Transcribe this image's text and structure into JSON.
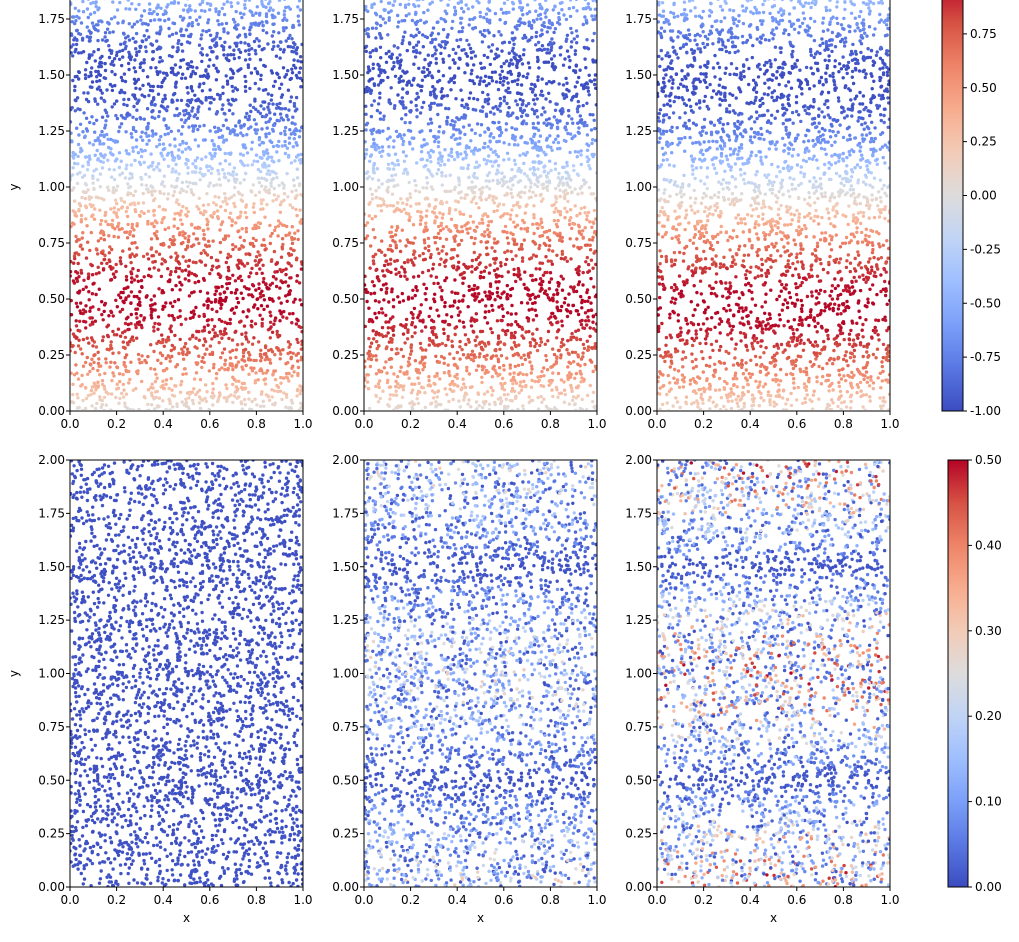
{
  "colors": {
    "coolwarm": [
      "#3b4cc0",
      "#5977e3",
      "#7b9ff9",
      "#9ebeff",
      "#c0d4f5",
      "#dddcdc",
      "#f2cbb7",
      "#f7ac8e",
      "#ee8468",
      "#d65244",
      "#b40426"
    ]
  },
  "chart_data": [
    {
      "type": "scatter",
      "panel": "top-left",
      "row": 0,
      "col": 0,
      "field": "sin",
      "phase": 0.0,
      "xlabel": "",
      "ylabel": "y",
      "xlim": [
        0,
        1
      ],
      "ylim": [
        0,
        2
      ],
      "xticks": [
        "0.0",
        "0.2",
        "0.4",
        "0.6",
        "0.8",
        "1.0"
      ],
      "yticks": [
        "0.00",
        "0.25",
        "0.50",
        "0.75",
        "1.00",
        "1.25",
        "1.50",
        "1.75"
      ]
    },
    {
      "type": "scatter",
      "panel": "top-middle",
      "row": 0,
      "col": 1,
      "field": "sin",
      "phase": 0.0,
      "xlabel": "",
      "ylabel": "",
      "xlim": [
        0,
        1
      ],
      "ylim": [
        0,
        2
      ],
      "xticks": [
        "0.0",
        "0.2",
        "0.4",
        "0.6",
        "0.8",
        "1.0"
      ],
      "yticks": [
        "0.00",
        "0.25",
        "0.50",
        "0.75",
        "1.00",
        "1.25",
        "1.50",
        "1.75"
      ]
    },
    {
      "type": "scatter",
      "panel": "top-right",
      "row": 0,
      "col": 2,
      "field": "sin",
      "phase": 0.03,
      "xlabel": "",
      "ylabel": "",
      "xlim": [
        0,
        1
      ],
      "ylim": [
        0,
        2
      ],
      "xticks": [
        "0.0",
        "0.2",
        "0.4",
        "0.6",
        "0.8",
        "1.0"
      ],
      "yticks": [
        "0.00",
        "0.25",
        "0.50",
        "0.75",
        "1.00",
        "1.25",
        "1.50",
        "1.75"
      ]
    },
    {
      "type": "scatter",
      "panel": "bottom-left",
      "row": 1,
      "col": 0,
      "field": "error",
      "amplitude": 0.005,
      "xlabel": "x",
      "ylabel": "y",
      "xlim": [
        0,
        1
      ],
      "ylim": [
        0,
        2
      ],
      "xticks": [
        "0.0",
        "0.2",
        "0.4",
        "0.6",
        "0.8",
        "1.0"
      ],
      "yticks": [
        "0.00",
        "0.25",
        "0.50",
        "0.75",
        "1.00",
        "1.25",
        "1.50",
        "1.75",
        "2.00"
      ]
    },
    {
      "type": "scatter",
      "panel": "bottom-middle",
      "row": 1,
      "col": 1,
      "field": "error",
      "amplitude": 0.3,
      "xlabel": "x",
      "ylabel": "",
      "xlim": [
        0,
        1
      ],
      "ylim": [
        0,
        2
      ],
      "xticks": [
        "0.0",
        "0.2",
        "0.4",
        "0.6",
        "0.8",
        "1.0"
      ],
      "yticks": [
        "0.00",
        "0.25",
        "0.50",
        "0.75",
        "1.00",
        "1.25",
        "1.50",
        "1.75",
        "2.00"
      ]
    },
    {
      "type": "scatter",
      "panel": "bottom-right",
      "row": 1,
      "col": 2,
      "field": "error",
      "amplitude": 0.5,
      "xlabel": "x",
      "ylabel": "",
      "xlim": [
        0,
        1
      ],
      "ylim": [
        0,
        2
      ],
      "xticks": [
        "0.0",
        "0.2",
        "0.4",
        "0.6",
        "0.8",
        "1.0"
      ],
      "yticks": [
        "0.00",
        "0.25",
        "0.50",
        "0.75",
        "1.00",
        "1.25",
        "1.50",
        "1.75",
        "2.00"
      ]
    }
  ],
  "colorbars": [
    {
      "name": "colorbar-top",
      "cmap": "coolwarm",
      "range": [
        -1,
        1
      ],
      "ticks": [
        "0.75",
        "0.50",
        "0.25",
        "0.00",
        "-0.25",
        "-0.50",
        "-0.75",
        "-1.00"
      ],
      "tick_values": [
        0.75,
        0.5,
        0.25,
        0,
        -0.25,
        -0.5,
        -0.75,
        -1
      ]
    },
    {
      "name": "colorbar-bottom",
      "cmap": "coolwarm",
      "range": [
        0,
        0.5
      ],
      "ticks": [
        "0.50",
        "0.40",
        "0.30",
        "0.20",
        "0.10",
        "0.00"
      ],
      "tick_values": [
        0.5,
        0.4,
        0.3,
        0.2,
        0.1,
        0
      ]
    }
  ]
}
